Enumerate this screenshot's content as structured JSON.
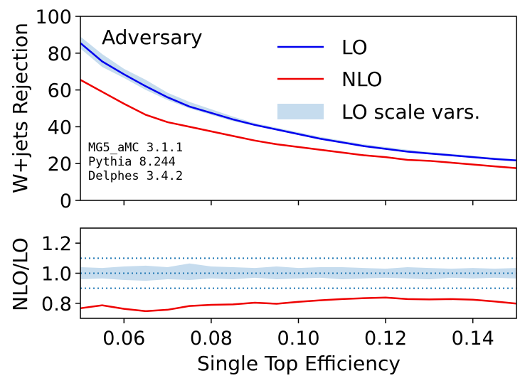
{
  "chart_data": [
    {
      "type": "line",
      "panel": "top",
      "ylabel": "W+jets Rejection",
      "xlabel": "",
      "xlim": [
        0.05,
        0.15
      ],
      "ylim": [
        0,
        100
      ],
      "yticks": [
        "0",
        "20",
        "40",
        "60",
        "80",
        "100"
      ],
      "annotation": "Adversary",
      "generator_text": [
        "MG5_aMC 3.1.1",
        "Pythia 8.244",
        "Delphes 3.4.2"
      ],
      "legend_position": "top-right",
      "legend": [
        {
          "label": "LO",
          "kind": "line",
          "color": "#0000ee"
        },
        {
          "label": "NLO",
          "kind": "line",
          "color": "#ee0000"
        },
        {
          "label": "LO scale vars.",
          "kind": "band",
          "color": "#c6dcee"
        }
      ],
      "x": [
        0.05,
        0.055,
        0.06,
        0.065,
        0.07,
        0.075,
        0.08,
        0.085,
        0.09,
        0.095,
        0.1,
        0.105,
        0.11,
        0.115,
        0.12,
        0.125,
        0.13,
        0.135,
        0.14,
        0.145,
        0.15
      ],
      "series": [
        {
          "name": "LO",
          "color": "#0000ee",
          "values": [
            85.5,
            75.5,
            68.5,
            62,
            56,
            51,
            47.5,
            44,
            41,
            38.5,
            36,
            33.5,
            31.5,
            29.5,
            28,
            26.5,
            25.5,
            24.5,
            23.5,
            22.5,
            21.7
          ]
        },
        {
          "name": "NLO",
          "color": "#ee0000",
          "values": [
            65.5,
            59,
            52.5,
            46.5,
            42.5,
            40,
            37.5,
            35,
            32.5,
            30.5,
            29,
            27.5,
            26,
            24.5,
            23.5,
            22,
            21.5,
            20.5,
            19.5,
            18.5,
            17.5
          ]
        },
        {
          "name": "LO scale vars.",
          "color": "#c6dcee",
          "kind": "band",
          "lower": [
            82.5,
            72.5,
            66.5,
            60,
            54.5,
            50,
            46.5,
            43,
            40.5,
            38,
            35.5,
            33,
            31,
            29,
            27.5,
            26,
            25,
            24,
            23,
            22.2,
            21.3
          ],
          "upper": [
            89,
            79.5,
            71.5,
            65.5,
            58.5,
            53.5,
            49.5,
            45.5,
            42,
            39.5,
            37,
            34.5,
            32.5,
            30.5,
            29,
            27.5,
            26.3,
            25.3,
            24.3,
            23.2,
            22.3
          ]
        }
      ]
    },
    {
      "type": "line",
      "panel": "bottom",
      "ylabel": "NLO/LO",
      "xlabel": "Single Top Efficiency",
      "xlim": [
        0.05,
        0.15
      ],
      "ylim": [
        0.7,
        1.3
      ],
      "yticks": [
        "0.8",
        "1.0",
        "1.2"
      ],
      "xticks": [
        "0.06",
        "0.08",
        "0.10",
        "0.12",
        "0.14"
      ],
      "reference_lines": [
        0.9,
        1.0,
        1.1
      ],
      "x": [
        0.05,
        0.055,
        0.06,
        0.065,
        0.07,
        0.075,
        0.08,
        0.085,
        0.09,
        0.095,
        0.1,
        0.105,
        0.11,
        0.115,
        0.12,
        0.125,
        0.13,
        0.135,
        0.14,
        0.145,
        0.15
      ],
      "series": [
        {
          "name": "NLO",
          "color": "#ee0000",
          "values": [
            0.767,
            0.787,
            0.763,
            0.748,
            0.757,
            0.782,
            0.79,
            0.793,
            0.804,
            0.797,
            0.81,
            0.82,
            0.828,
            0.834,
            0.838,
            0.828,
            0.826,
            0.828,
            0.824,
            0.812,
            0.798
          ]
        },
        {
          "name": "LO scale vars.",
          "color": "#c6dcee",
          "kind": "band",
          "lower": [
            0.96,
            0.965,
            0.955,
            0.95,
            0.96,
            0.955,
            0.965,
            0.96,
            0.97,
            0.96,
            0.965,
            0.97,
            0.96,
            0.965,
            0.97,
            0.965,
            0.96,
            0.97,
            0.965,
            0.97,
            0.965
          ],
          "upper": [
            1.04,
            1.035,
            1.045,
            1.05,
            1.04,
            1.065,
            1.045,
            1.04,
            1.035,
            1.045,
            1.035,
            1.04,
            1.04,
            1.035,
            1.03,
            1.04,
            1.035,
            1.03,
            1.035,
            1.03,
            1.035
          ]
        }
      ]
    }
  ]
}
